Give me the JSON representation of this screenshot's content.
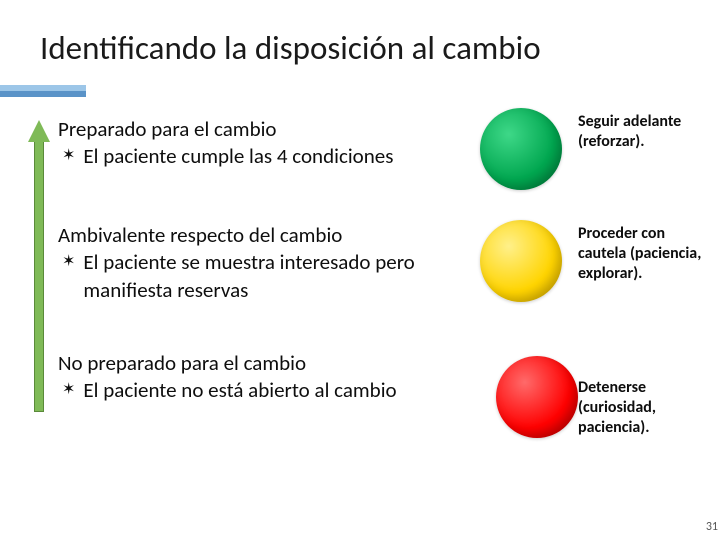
{
  "title": "Identificando la disposición al cambio",
  "colors": {
    "underline_top": "#9cc6e8",
    "underline_bottom": "#5a93c8",
    "arrow_fill": "#7fba57",
    "arrow_border": "#5a8a3a",
    "green_circle": "#00a64f",
    "yellow_circle": "#ffd400",
    "red_circle": "#ff0000",
    "text": "#0e0e0e"
  },
  "bullet_glyph": "✶",
  "blocks": [
    {
      "heading": "Preparado para el cambio",
      "bullet": "El paciente cumple las 4 condiciones"
    },
    {
      "heading": "Ambivalente respecto del cambio",
      "bullet": "El paciente se muestra interesado pero manifiesta reservas"
    },
    {
      "heading": "No preparado para el cambio",
      "bullet": "El paciente no está abierto al cambio"
    }
  ],
  "labels": [
    "Seguir adelante (reforzar).",
    "Proceder con cautela (paciencia, explorar).",
    "Detenerse (curiosidad, paciencia)."
  ],
  "page_number": "31"
}
